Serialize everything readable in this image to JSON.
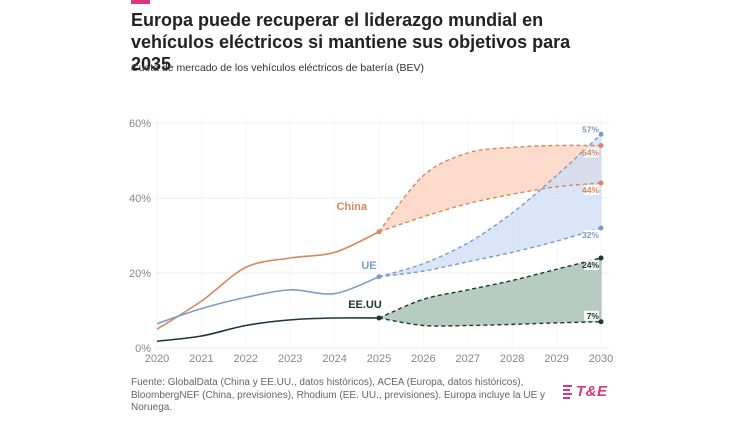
{
  "header": {
    "title": "Europa puede recuperar el liderazgo mundial en vehículos eléctricos si mantiene sus objetivos para 2035",
    "subtitle": "Cuota de mercado de los vehículos eléctricos de batería (BEV)"
  },
  "footer": {
    "source": "Fuente: GlobalData (China y EE.UU., datos históricos), ACEA (Europa, datos históricos), BloombergNEF (China, previsiones), Rhodium (EE. UU., previsiones). Europa incluye la UE y Noruega.",
    "logo": "T&E"
  },
  "colors": {
    "accent": "#d63a7c",
    "china": "#d9875e",
    "china_fill": "#fcd5c3",
    "ue": "#7b9cc9",
    "ue_fill": "#cddcf6",
    "eeuu": "#1b3a2c",
    "eeuu_fill": "#a9c2b7",
    "grid": "#eeeeee",
    "tick": "#888888"
  },
  "chart_data": {
    "type": "line",
    "title": "Europa puede recuperar el liderazgo mundial en vehículos eléctricos si mantiene sus objetivos para 2035",
    "subtitle": "Cuota de mercado de los vehículos eléctricos de batería (BEV)",
    "xlabel": "",
    "ylabel": "",
    "x": [
      2020,
      2021,
      2022,
      2023,
      2024,
      2025,
      2026,
      2027,
      2028,
      2029,
      2030
    ],
    "xlim": [
      2020,
      2030
    ],
    "ylim": [
      0,
      60
    ],
    "yticks": [
      0,
      20,
      40,
      60
    ],
    "ytick_labels": [
      "0%",
      "20%",
      "40%",
      "60%"
    ],
    "xtick_labels": [
      "2020",
      "2021",
      "2022",
      "2023",
      "2024",
      "2025",
      "2026",
      "2027",
      "2028",
      "2029",
      "2030"
    ],
    "grid": true,
    "legend": "inline labels",
    "series": [
      {
        "name": "China",
        "color_key": "china",
        "historical": {
          "x": [
            2020,
            2021,
            2022,
            2023,
            2024,
            2025
          ],
          "values": [
            5,
            12.5,
            21.5,
            24,
            25.5,
            31
          ]
        },
        "projection_high": {
          "x": [
            2025,
            2026,
            2027,
            2028,
            2029,
            2030
          ],
          "values": [
            31,
            46,
            52,
            53.5,
            54,
            54
          ]
        },
        "projection_low": {
          "x": [
            2025,
            2026,
            2027,
            2028,
            2029,
            2030
          ],
          "values": [
            31,
            35,
            38.5,
            41,
            43,
            44
          ]
        },
        "end_labels": {
          "high": "54%",
          "low": "44%"
        }
      },
      {
        "name": "UE",
        "color_key": "ue",
        "historical": {
          "x": [
            2020,
            2021,
            2022,
            2023,
            2024,
            2025
          ],
          "values": [
            6.5,
            10.5,
            13.5,
            15.5,
            14.5,
            19
          ]
        },
        "projection_high": {
          "x": [
            2025,
            2026,
            2027,
            2028,
            2029,
            2030
          ],
          "values": [
            19,
            22.5,
            28,
            36,
            46,
            57
          ]
        },
        "projection_low": {
          "x": [
            2025,
            2026,
            2027,
            2028,
            2029,
            2030
          ],
          "values": [
            19,
            20.5,
            23,
            25.5,
            28.5,
            32
          ]
        },
        "end_labels": {
          "high": "57%",
          "low": "32%"
        }
      },
      {
        "name": "EE.UU",
        "color_key": "eeuu",
        "historical": {
          "x": [
            2020,
            2021,
            2022,
            2023,
            2024,
            2025
          ],
          "values": [
            1.8,
            3.2,
            6,
            7.5,
            8,
            8
          ]
        },
        "projection_high": {
          "x": [
            2025,
            2026,
            2027,
            2028,
            2029,
            2030
          ],
          "values": [
            8,
            13,
            15.5,
            18,
            21,
            24
          ]
        },
        "projection_low": {
          "x": [
            2025,
            2026,
            2027,
            2028,
            2029,
            2030
          ],
          "values": [
            8,
            6,
            6,
            6.3,
            6.7,
            7
          ]
        },
        "end_labels": {
          "high": "24%",
          "low": "7%"
        }
      }
    ]
  }
}
